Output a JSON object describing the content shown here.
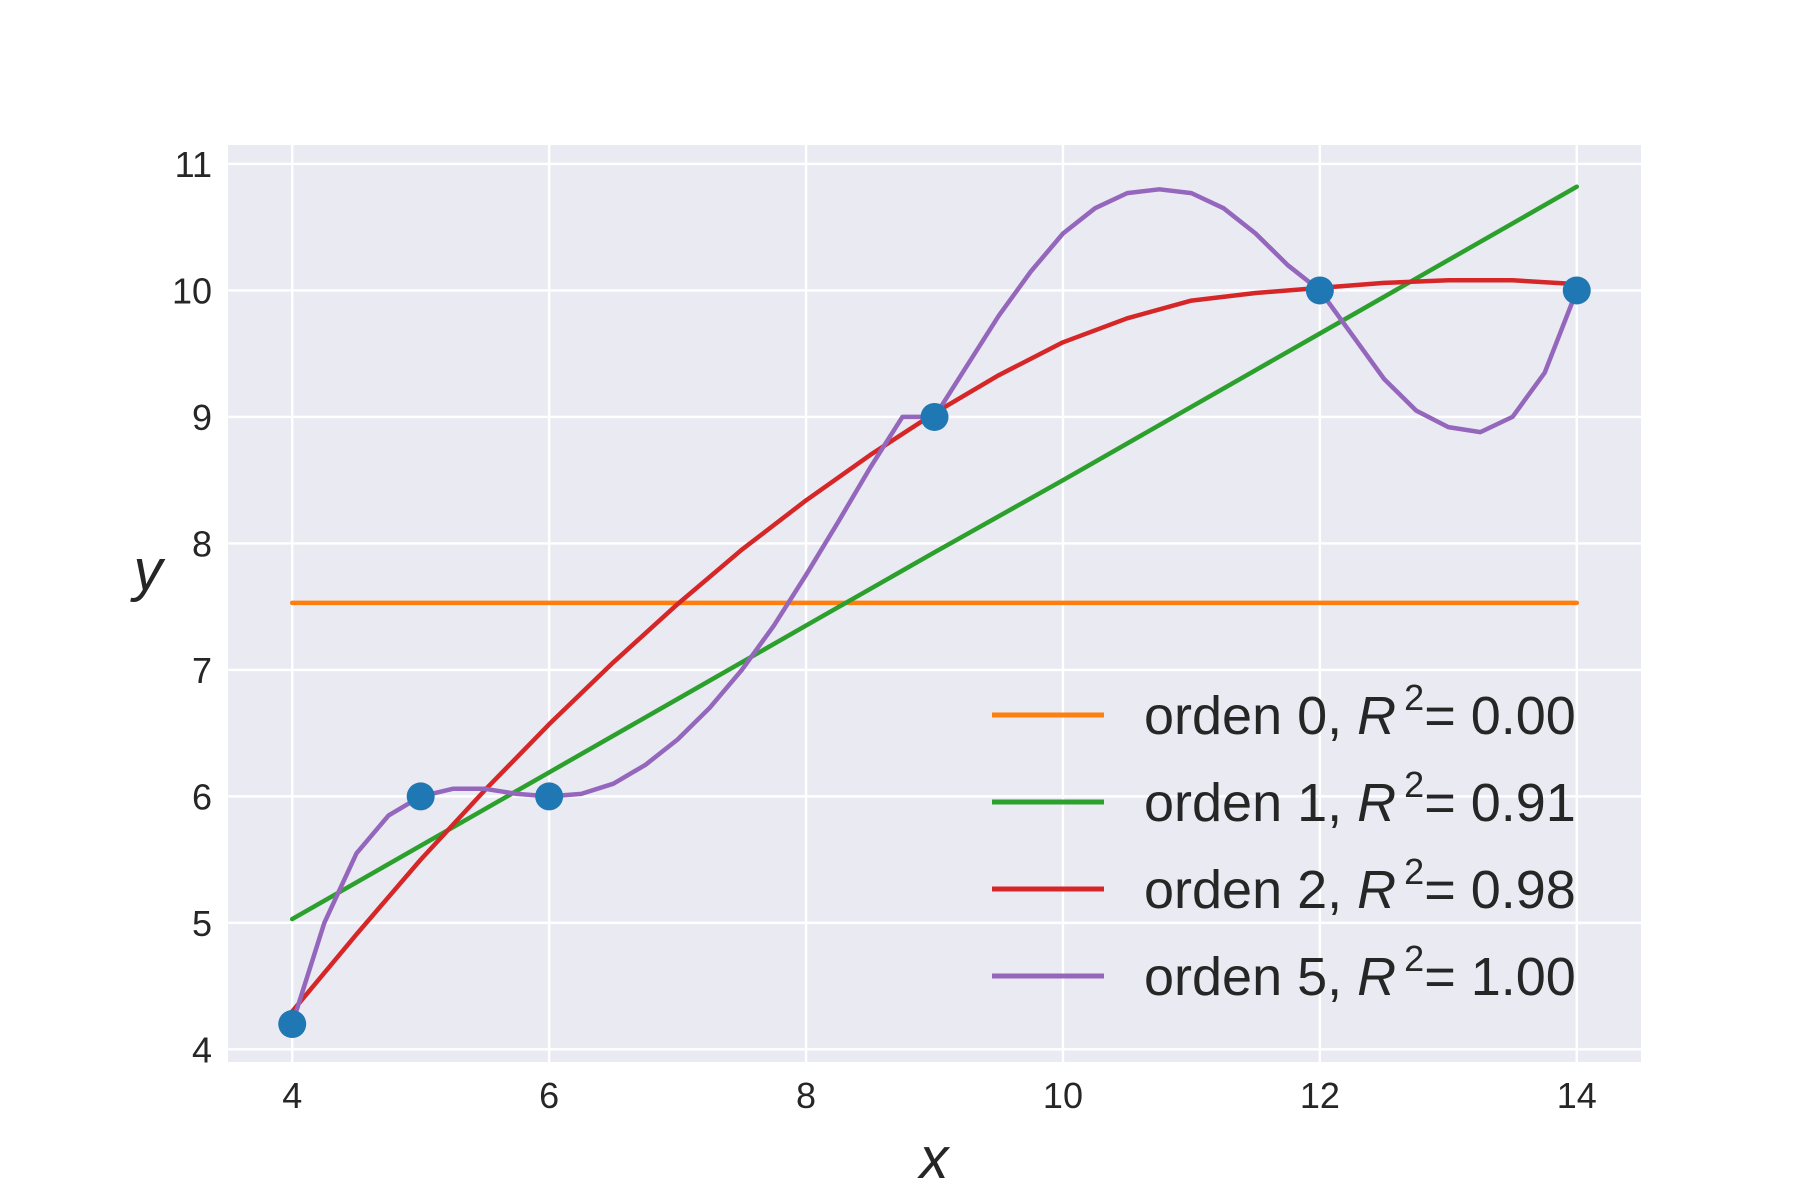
{
  "chart_data": {
    "type": "scatter",
    "xlabel": "x",
    "ylabel": "y",
    "xlim": [
      3.5,
      14.5
    ],
    "ylim": [
      3.9,
      11.15
    ],
    "xticks": [
      4,
      6,
      8,
      10,
      12,
      14
    ],
    "yticks": [
      4,
      5,
      6,
      7,
      8,
      9,
      10,
      11
    ],
    "grid": true,
    "legend_position": "bottom-right",
    "points": {
      "color": "#1f77b4",
      "x": [
        4,
        5,
        6,
        9,
        12,
        14
      ],
      "y": [
        4.2,
        6,
        6,
        9,
        10,
        10
      ]
    },
    "series": [
      {
        "prefix": "orden 0, ",
        "r2_value": "= 0.00",
        "color": "#ff7f0e",
        "x": [
          4,
          5,
          6,
          7,
          8,
          9,
          10,
          11,
          12,
          13,
          14
        ],
        "y": [
          7.53,
          7.53,
          7.53,
          7.53,
          7.53,
          7.53,
          7.53,
          7.53,
          7.53,
          7.53,
          7.53
        ]
      },
      {
        "prefix": "orden 1, ",
        "r2_value": "= 0.91",
        "color": "#2ca02c",
        "x": [
          4,
          5,
          6,
          7,
          8,
          9,
          10,
          11,
          12,
          13,
          14
        ],
        "y": [
          5.03,
          5.61,
          6.19,
          6.77,
          7.35,
          7.93,
          8.5,
          9.08,
          9.66,
          10.24,
          10.82
        ]
      },
      {
        "prefix": "orden 2, ",
        "r2_value": "= 0.98",
        "color": "#d62728",
        "x": [
          4,
          4.5,
          5,
          5.5,
          6,
          6.5,
          7,
          7.5,
          8,
          8.5,
          9,
          9.5,
          10,
          10.5,
          11,
          11.5,
          12,
          12.5,
          13,
          13.5,
          14
        ],
        "y": [
          4.3,
          4.91,
          5.5,
          6.05,
          6.57,
          7.06,
          7.52,
          7.95,
          8.34,
          8.7,
          9.03,
          9.33,
          9.59,
          9.78,
          9.92,
          9.98,
          10.02,
          10.06,
          10.08,
          10.08,
          10.05
        ]
      },
      {
        "prefix": "orden 5, ",
        "r2_value": "= 1.00",
        "color": "#9467bd",
        "x": [
          4,
          4.25,
          4.5,
          4.75,
          5,
          5.25,
          5.5,
          5.75,
          6,
          6.25,
          6.5,
          6.75,
          7,
          7.25,
          7.5,
          7.75,
          8,
          8.25,
          8.5,
          8.75,
          9,
          9.25,
          9.5,
          9.75,
          10,
          10.25,
          10.5,
          10.75,
          11,
          11.25,
          11.5,
          11.75,
          12,
          12.25,
          12.5,
          12.75,
          13,
          13.25,
          13.5,
          13.75,
          14
        ],
        "y": [
          4.2,
          5.0,
          5.55,
          5.85,
          6.0,
          6.06,
          6.06,
          6.02,
          6.0,
          6.02,
          6.1,
          6.25,
          6.45,
          6.7,
          7.0,
          7.35,
          7.75,
          8.17,
          8.6,
          9.0,
          9.0,
          9.4,
          9.8,
          10.15,
          10.45,
          10.65,
          10.77,
          10.8,
          10.77,
          10.65,
          10.45,
          10.2,
          10.0,
          9.65,
          9.3,
          9.05,
          8.92,
          8.88,
          9.0,
          9.35,
          10.0
        ]
      }
    ]
  }
}
